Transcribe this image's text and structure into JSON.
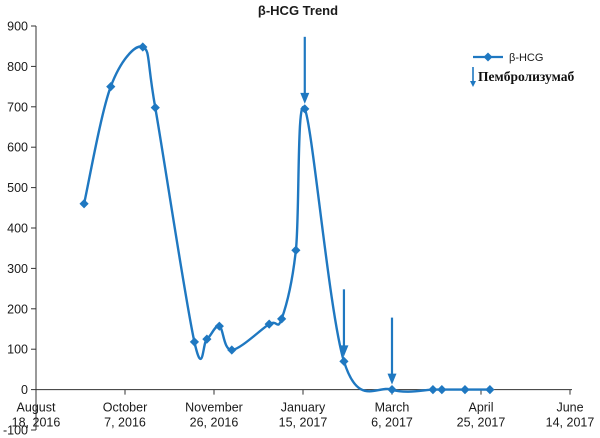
{
  "chart_data": {
    "type": "line",
    "title": "β-HCG Trend",
    "xlabel": "",
    "ylabel": "",
    "ylim": [
      -100,
      900
    ],
    "yticks": [
      -100,
      0,
      100,
      200,
      300,
      400,
      500,
      600,
      700,
      800,
      900
    ],
    "xlim": [
      "2016-08-18",
      "2017-06-14"
    ],
    "x_tick_labels": [
      {
        "date": "2016-08-18",
        "line1": "August",
        "line2": "18, 2016"
      },
      {
        "date": "2016-10-07",
        "line1": "October",
        "line2": "7, 2016"
      },
      {
        "date": "2016-11-26",
        "line1": "November",
        "line2": "26, 2016"
      },
      {
        "date": "2017-01-15",
        "line1": "January",
        "line2": "15, 2017"
      },
      {
        "date": "2017-03-06",
        "line1": "March",
        "line2": "6, 2017"
      },
      {
        "date": "2017-04-25",
        "line1": "April",
        "line2": "25, 2017"
      },
      {
        "date": "2017-06-14",
        "line1": "June",
        "line2": "14, 2017"
      }
    ],
    "series": [
      {
        "name": "β-HCG",
        "color": "#1f78c1",
        "marker": "diamond",
        "smooth": true,
        "points": [
          {
            "x": "2016-09-14",
            "y": 460
          },
          {
            "x": "2016-09-29",
            "y": 750
          },
          {
            "x": "2016-10-17",
            "y": 848
          },
          {
            "x": "2016-10-24",
            "y": 698
          },
          {
            "x": "2016-11-15",
            "y": 118
          },
          {
            "x": "2016-11-22",
            "y": 125
          },
          {
            "x": "2016-11-29",
            "y": 157
          },
          {
            "x": "2016-12-06",
            "y": 98
          },
          {
            "x": "2016-12-27",
            "y": 162
          },
          {
            "x": "2017-01-03",
            "y": 175
          },
          {
            "x": "2017-01-11",
            "y": 345
          },
          {
            "x": "2017-01-16",
            "y": 695
          },
          {
            "x": "2017-02-07",
            "y": 70
          },
          {
            "x": "2017-03-06",
            "y": 0
          },
          {
            "x": "2017-03-29",
            "y": 0
          },
          {
            "x": "2017-04-03",
            "y": 0
          },
          {
            "x": "2017-04-16",
            "y": 0
          },
          {
            "x": "2017-04-30",
            "y": 0
          }
        ]
      }
    ],
    "annotations": [
      {
        "type": "arrow",
        "x": "2017-01-16",
        "label": "Пембролизумаб"
      },
      {
        "type": "arrow",
        "x": "2017-02-07",
        "label": "Пембролизумаб"
      },
      {
        "type": "arrow",
        "x": "2017-03-06",
        "label": "Пембролизумаб"
      }
    ],
    "legend": {
      "position": "top-right",
      "entries": [
        {
          "label": "β-HCG",
          "symbol": "line-diamond"
        },
        {
          "label": "Пембролизумаб",
          "symbol": "arrow"
        }
      ]
    },
    "grid": false,
    "colors": {
      "series": "#1f78c1",
      "axis": "#333333",
      "text": "#1a1a1a"
    }
  }
}
